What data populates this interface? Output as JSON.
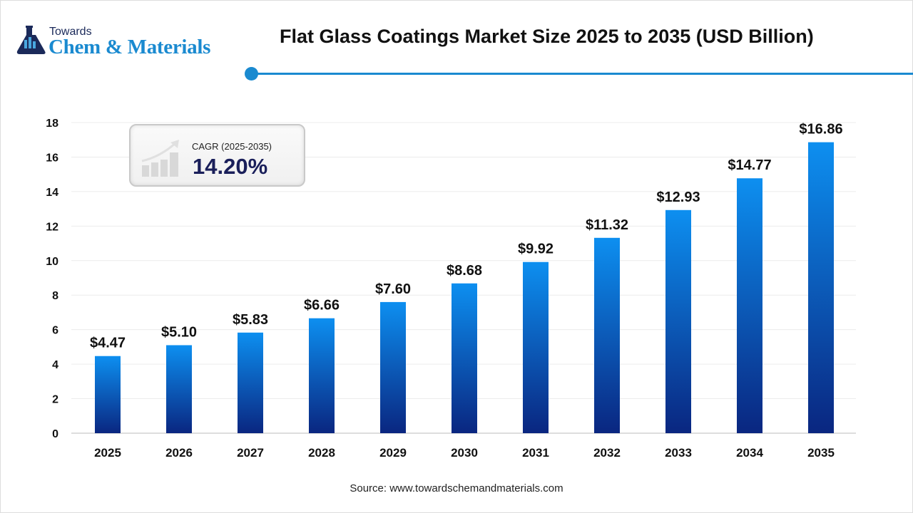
{
  "logo": {
    "line1": "Towards",
    "line2": "Chem & Materials"
  },
  "colors": {
    "accent": "#1a8ad0",
    "bar_top": "#0d8ff0",
    "bar_bottom": "#0a2680"
  },
  "cagr": {
    "label": "CAGR (2025-2035)",
    "value": "14.20%",
    "icon": "growth-chart-icon"
  },
  "source": "Source: www.towardschemandmaterials.com",
  "chart_data": {
    "type": "bar",
    "title": "Flat Glass Coatings Market Size 2025 to 2035 (USD Billion)",
    "categories": [
      "2025",
      "2026",
      "2027",
      "2028",
      "2029",
      "2030",
      "2031",
      "2032",
      "2033",
      "2034",
      "2035"
    ],
    "values": [
      4.47,
      5.1,
      5.83,
      6.66,
      7.6,
      8.68,
      9.92,
      11.32,
      12.93,
      14.77,
      16.86
    ],
    "data_labels": [
      "$4.47",
      "$5.10",
      "$5.83",
      "$6.66",
      "$7.60",
      "$8.68",
      "$9.92",
      "$11.32",
      "$12.93",
      "$14.77",
      "$16.86"
    ],
    "yticks": [
      "0",
      "2",
      "4",
      "6",
      "8",
      "10",
      "12",
      "14",
      "16",
      "18"
    ],
    "ylim": [
      0,
      18
    ],
    "xlabel": "",
    "ylabel": "",
    "grid": true
  }
}
